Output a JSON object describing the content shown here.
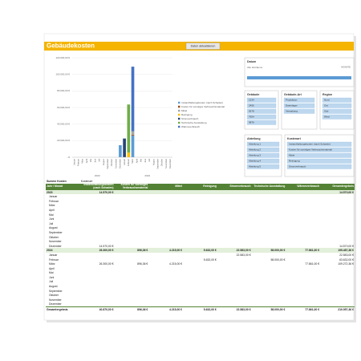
{
  "header": {
    "title": "Gebäudekosten",
    "button": "Daten aktualisieren"
  },
  "chart": {
    "type": "bar",
    "stacked": true,
    "categories": [
      "Januar",
      "Februar",
      "März",
      "April",
      "Mai",
      "Juni",
      "Juli",
      "August",
      "September",
      "Oktober",
      "November",
      "Dezember",
      "Januar",
      "Februar",
      "März",
      "April",
      "Mai",
      "Juni",
      "Juli",
      "August",
      "September",
      "Oktober",
      "November",
      "Dezember"
    ],
    "year_labels": [
      "2023",
      "2024"
    ],
    "ylim": [
      0,
      120000
    ],
    "yticks": [
      {
        "value": 0,
        "label": "- €"
      },
      {
        "value": 20000,
        "label": "20.000,00 €"
      },
      {
        "value": 40000,
        "label": "40.000,00 €"
      },
      {
        "value": 60000,
        "label": "60.000,00 €"
      },
      {
        "value": 80000,
        "label": "80.000,00 €"
      },
      {
        "value": 100000,
        "label": "100.000,00 €"
      },
      {
        "value": 120000,
        "label": "120.000,00 €"
      }
    ],
    "grid": true,
    "series": [
      {
        "name": "Instandhaltungskosten (nach Schaden)",
        "color": "#5b9bd5",
        "values": [
          null,
          null,
          null,
          null,
          null,
          null,
          null,
          null,
          null,
          null,
          null,
          14570,
          null,
          null,
          26300,
          null,
          null,
          null,
          null,
          null,
          null,
          null,
          null,
          null
        ]
      },
      {
        "name": "Kosten für sonstiges Verbrauchsmaterial",
        "color": "#9e480e",
        "values": [
          null,
          null,
          null,
          null,
          null,
          null,
          null,
          null,
          null,
          null,
          null,
          null,
          null,
          null,
          896.36,
          null,
          null,
          null,
          null,
          null,
          null,
          null,
          null,
          null
        ]
      },
      {
        "name": "Mittel",
        "color": "#a5a5a5",
        "values": [
          null,
          null,
          null,
          null,
          null,
          null,
          null,
          null,
          null,
          null,
          null,
          null,
          null,
          null,
          4215,
          null,
          null,
          null,
          null,
          null,
          null,
          null,
          null,
          null
        ]
      },
      {
        "name": "Reinigung",
        "color": "#ffc000",
        "values": [
          null,
          null,
          null,
          null,
          null,
          null,
          null,
          null,
          null,
          null,
          null,
          null,
          null,
          5632,
          null,
          null,
          null,
          null,
          null,
          null,
          null,
          null,
          null,
          null
        ]
      },
      {
        "name": "Stromverbrauch",
        "color": "#264478",
        "values": [
          null,
          null,
          null,
          null,
          null,
          null,
          null,
          null,
          null,
          null,
          null,
          null,
          22583,
          null,
          null,
          null,
          null,
          null,
          null,
          null,
          null,
          null,
          null,
          null
        ]
      },
      {
        "name": "Technische Ausstattung",
        "color": "#70ad47",
        "values": [
          null,
          null,
          null,
          null,
          null,
          null,
          null,
          null,
          null,
          null,
          null,
          null,
          null,
          58000,
          null,
          null,
          null,
          null,
          null,
          null,
          null,
          null,
          null,
          null
        ]
      },
      {
        "name": "Wärmeverbrauch",
        "color": "#4472c4",
        "values": [
          null,
          null,
          null,
          null,
          null,
          null,
          null,
          null,
          null,
          null,
          null,
          null,
          null,
          null,
          77861,
          null,
          null,
          null,
          null,
          null,
          null,
          null,
          null,
          null
        ]
      }
    ]
  },
  "slicers": {
    "datum": {
      "title": "Datum",
      "range": "Alle Zeiträume",
      "unit": "MONATE"
    },
    "gebaeude": {
      "title": "Gebäude",
      "items": [
        "1234",
        "2456",
        "5678",
        "7654",
        "9876"
      ]
    },
    "gebaeudeart": {
      "title": "Gebäude-Art",
      "items": [
        "Produktion",
        "Datenlager",
        "Verwaltung"
      ]
    },
    "region": {
      "title": "Region",
      "items": [
        "Nord",
        "Ost",
        "Süd",
        "West"
      ]
    },
    "abteilung": {
      "title": "Abteilung",
      "items": [
        "Abteilung 1",
        "Abteilung 2",
        "Abteilung 3",
        "Abteilung 4",
        "Abteilung 5"
      ]
    },
    "kostenart": {
      "title": "Kostenart",
      "items": [
        "Instandhaltungskosten (nach Schaden)",
        "Kosten für sonstiges Verbrauchsmaterial",
        "Mittel",
        "Reinigung",
        "Stromverbrauch"
      ]
    }
  },
  "table": {
    "corner": "Summe Kosten",
    "column_field": "Kostenart",
    "row_field": "Jahr / Monat",
    "headers": [
      "Instandhaltungskosten (nach Schaden)",
      "Kosten für sonstiges Verbrauchsmaterial",
      "Mittel",
      "Reinigung",
      "Stromverbrauch",
      "Technische Ausstattung",
      "Wärmeverbrauch",
      "Gesamtergebnis"
    ],
    "groups": [
      {
        "label": "2023",
        "cells": [
          "14.570,00 €",
          null,
          null,
          null,
          null,
          null,
          null,
          "14.570,00 €"
        ],
        "months": [
          {
            "label": "Januar",
            "cells": null
          },
          {
            "label": "Februar",
            "cells": null
          },
          {
            "label": "März",
            "cells": null
          },
          {
            "label": "April",
            "cells": null
          },
          {
            "label": "Mai",
            "cells": null
          },
          {
            "label": "Juni",
            "cells": null
          },
          {
            "label": "Juli",
            "cells": null
          },
          {
            "label": "August",
            "cells": null
          },
          {
            "label": "September",
            "cells": null
          },
          {
            "label": "Oktober",
            "cells": null
          },
          {
            "label": "November",
            "cells": null
          },
          {
            "label": "Dezember",
            "cells": [
              "14.570,00 €",
              null,
              null,
              null,
              null,
              null,
              null,
              "14.570,00 €"
            ]
          }
        ]
      },
      {
        "label": "2024",
        "cells": [
          "26.300,00 €",
          "896,36 €",
          "4.215,00 €",
          "5.632,00 €",
          "22.583,00 €",
          "58.000,00 €",
          "77.861,00 €",
          "195.487,36 €"
        ],
        "months": [
          {
            "label": "Januar",
            "cells": [
              null,
              null,
              null,
              null,
              "22.583,00 €",
              null,
              null,
              "22.583,00 €"
            ]
          },
          {
            "label": "Februar",
            "cells": [
              null,
              null,
              null,
              "5.632,00 €",
              null,
              "58.000,00 €",
              null,
              "63.632,00 €"
            ]
          },
          {
            "label": "März",
            "cells": [
              "26.300,00 €",
              "896,36 €",
              "4.215,00 €",
              null,
              null,
              null,
              "77.861,00 €",
              "109.272,36 €"
            ]
          },
          {
            "label": "April",
            "cells": null
          },
          {
            "label": "Mai",
            "cells": null
          },
          {
            "label": "Juni",
            "cells": null
          },
          {
            "label": "Juli",
            "cells": null
          },
          {
            "label": "August",
            "cells": null
          },
          {
            "label": "September",
            "cells": null
          },
          {
            "label": "Oktober",
            "cells": null
          },
          {
            "label": "November",
            "cells": null
          },
          {
            "label": "Dezember",
            "cells": null
          }
        ]
      }
    ],
    "total": {
      "label": "Gesamtergebnis",
      "cells": [
        "40.870,00 €",
        "896,36 €",
        "4.215,00 €",
        "5.632,00 €",
        "22.583,00 €",
        "58.000,00 €",
        "77.861,00 €",
        "210.057,36 €"
      ]
    }
  }
}
